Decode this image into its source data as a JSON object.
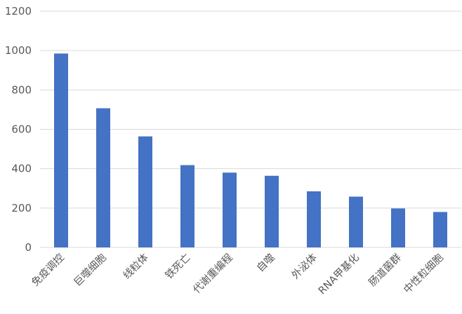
{
  "chart_data": {
    "type": "bar",
    "title": "",
    "xlabel": "",
    "ylabel": "",
    "categories": [
      "免疫调控",
      "巨噬细胞",
      "线粒体",
      "铁死亡",
      "代谢重编程",
      "自噬",
      "外泌体",
      "RNA甲基化",
      "肠道菌群",
      "中性粒细胞"
    ],
    "values": [
      985,
      707,
      564,
      418,
      380,
      364,
      285,
      258,
      198,
      180
    ],
    "ylim": [
      0,
      1200
    ],
    "yticks": [
      "0",
      "200",
      "400",
      "600",
      "800",
      "1000",
      "1200"
    ],
    "grid": true,
    "legend": "none",
    "colors": {
      "bar": "#4472C4",
      "grid": "#D9D9D9",
      "text": "#595959"
    }
  }
}
